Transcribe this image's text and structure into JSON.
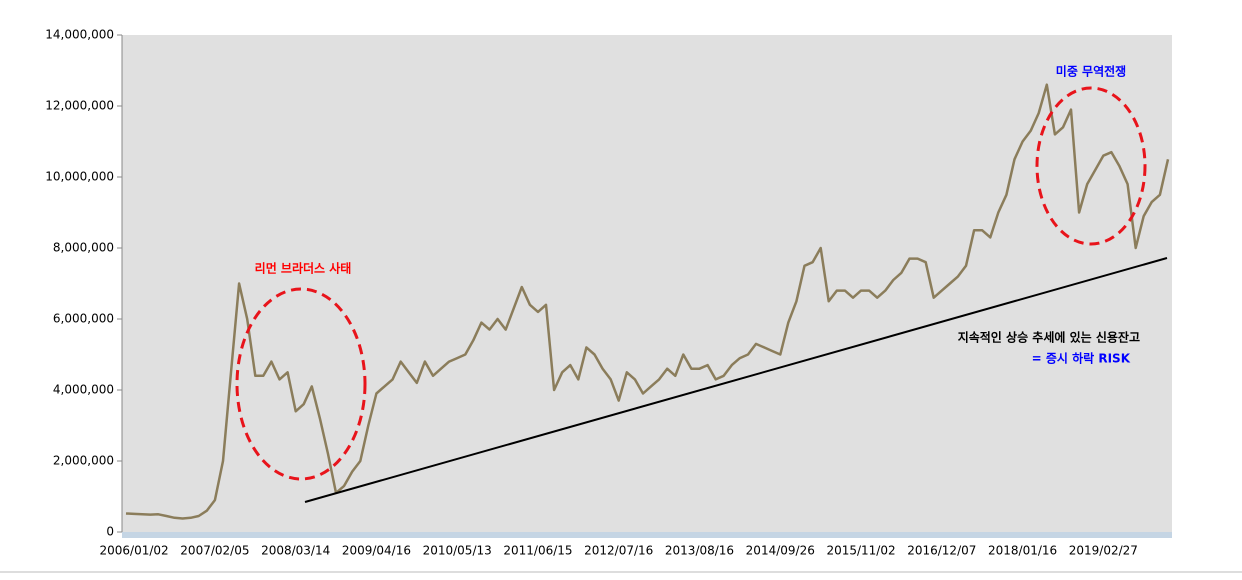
{
  "chart_data": {
    "type": "line",
    "categories": [
      null,
      "2006/01/02",
      null,
      null,
      null,
      null,
      null,
      null,
      null,
      null,
      null,
      "2007/02/05",
      null,
      null,
      null,
      null,
      null,
      null,
      null,
      null,
      null,
      "2008/03/14",
      null,
      null,
      null,
      null,
      null,
      null,
      null,
      null,
      null,
      "2009/04/16",
      null,
      null,
      null,
      null,
      null,
      null,
      null,
      null,
      null,
      "2010/05/13",
      null,
      null,
      null,
      null,
      null,
      null,
      null,
      null,
      null,
      "2011/06/15",
      null,
      null,
      null,
      null,
      null,
      null,
      null,
      null,
      null,
      "2012/07/16",
      null,
      null,
      null,
      null,
      null,
      null,
      null,
      null,
      null,
      "2013/08/16",
      null,
      null,
      null,
      null,
      null,
      null,
      null,
      null,
      null,
      "2014/09/26",
      null,
      null,
      null,
      null,
      null,
      null,
      null,
      null,
      null,
      "2015/11/02",
      null,
      null,
      null,
      null,
      null,
      null,
      null,
      null,
      null,
      "2016/12/07",
      null,
      null,
      null,
      null,
      null,
      null,
      null,
      null,
      null,
      "2018/01/16",
      null,
      null,
      null,
      null,
      null,
      null,
      null,
      null,
      null,
      "2019/02/27",
      null,
      null,
      null,
      null,
      null,
      null,
      null,
      null
    ],
    "values": [
      520000,
      510000,
      500000,
      490000,
      500000,
      450000,
      400000,
      380000,
      400000,
      450000,
      600000,
      900000,
      2000000,
      4500000,
      7000000,
      6000000,
      4400000,
      4400000,
      4800000,
      4300000,
      4500000,
      3400000,
      3600000,
      4100000,
      3200000,
      2200000,
      1100000,
      1300000,
      1700000,
      2000000,
      3000000,
      3900000,
      4100000,
      4300000,
      4800000,
      4500000,
      4200000,
      4800000,
      4400000,
      4600000,
      4800000,
      4900000,
      5000000,
      5400000,
      5900000,
      5700000,
      6000000,
      5700000,
      6300000,
      6900000,
      6400000,
      6200000,
      6400000,
      4000000,
      4500000,
      4700000,
      4300000,
      5200000,
      5000000,
      4600000,
      4300000,
      3700000,
      4500000,
      4300000,
      3900000,
      4100000,
      4300000,
      4600000,
      4400000,
      5000000,
      4600000,
      4600000,
      4700000,
      4300000,
      4400000,
      4700000,
      4900000,
      5000000,
      5300000,
      5200000,
      5100000,
      5000000,
      5900000,
      6500000,
      7500000,
      7600000,
      8000000,
      6500000,
      6800000,
      6800000,
      6600000,
      6800000,
      6800000,
      6600000,
      6800000,
      7100000,
      7300000,
      7700000,
      7700000,
      7600000,
      6600000,
      6800000,
      7000000,
      7200000,
      7500000,
      8500000,
      8500000,
      8300000,
      9000000,
      9500000,
      10500000,
      11000000,
      11300000,
      11800000,
      12600000,
      11200000,
      11400000,
      11900000,
      9000000,
      9800000,
      10200000,
      10600000,
      10700000,
      10300000,
      9800000,
      8000000,
      8900000,
      9300000,
      9500000,
      10500000
    ],
    "color": "#8b7d5b",
    "ylim": [
      0,
      14000000
    ],
    "yticks": [
      0,
      {
        "value": 2000000,
        "label": "2,000,000"
      },
      {
        "value": 4000000,
        "label": "4,000,000"
      },
      {
        "value": 6000000,
        "label": "6,000,000"
      },
      {
        "value": 8000000,
        "label": "8,000,000"
      },
      {
        "value": 10000000,
        "label": "10,000,000"
      },
      {
        "value": 12000000,
        "label": "12,000,000"
      },
      {
        "value": 14000000,
        "label": "14,000,000"
      }
    ],
    "annotations": [
      {
        "text": "리먼 브라더스 사태",
        "color": "#ff0000"
      },
      {
        "text": "미중 무역전쟁",
        "color": "#0000ff"
      },
      {
        "text": "지속적인 상승 추세에 있는 신용잔고",
        "color": "#000000"
      },
      {
        "text": "= 증시 하락 RISK",
        "color": "#0000ff"
      }
    ]
  }
}
